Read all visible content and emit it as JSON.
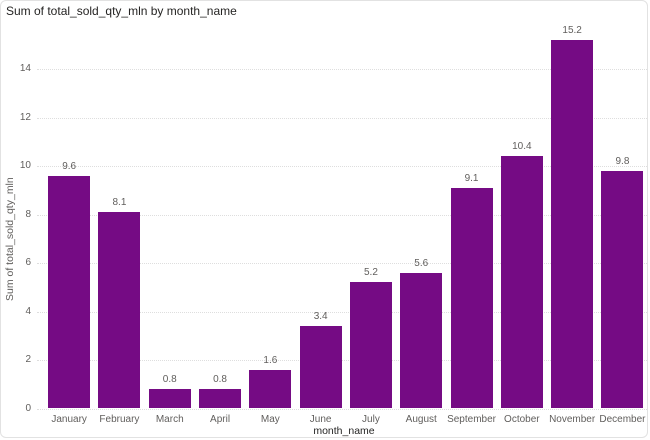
{
  "visual": {
    "title": "Sum of total_sold_qty_mln by month_name"
  },
  "chart_data": {
    "type": "bar",
    "title": "Sum of total_sold_qty_mln by month_name",
    "categories": [
      "January",
      "February",
      "March",
      "April",
      "May",
      "June",
      "July",
      "August",
      "September",
      "October",
      "November",
      "December"
    ],
    "values": [
      9.6,
      8.1,
      0.8,
      0.8,
      1.6,
      3.4,
      5.2,
      5.6,
      9.1,
      10.4,
      15.2,
      9.8
    ],
    "data_labels": [
      "9.6",
      "8.1",
      "0.8",
      "0.8",
      "1.6",
      "3.4",
      "5.2",
      "5.6",
      "9.1",
      "10.4",
      "15.2",
      "9.8"
    ],
    "xlabel": "month_name",
    "ylabel": "Sum of total_sold_qty_mln",
    "yticks": [
      0,
      2,
      4,
      6,
      8,
      10,
      12,
      14
    ],
    "ylim": [
      0,
      15.7
    ],
    "grid": "horizontal-dotted",
    "legend_position": "none",
    "colors": {
      "bar": "#750B84",
      "axis_text": "#605E5C",
      "title_text": "#252423",
      "gridline": "#dedede",
      "background": "#ffffff",
      "border": "#e2e2e2"
    }
  }
}
